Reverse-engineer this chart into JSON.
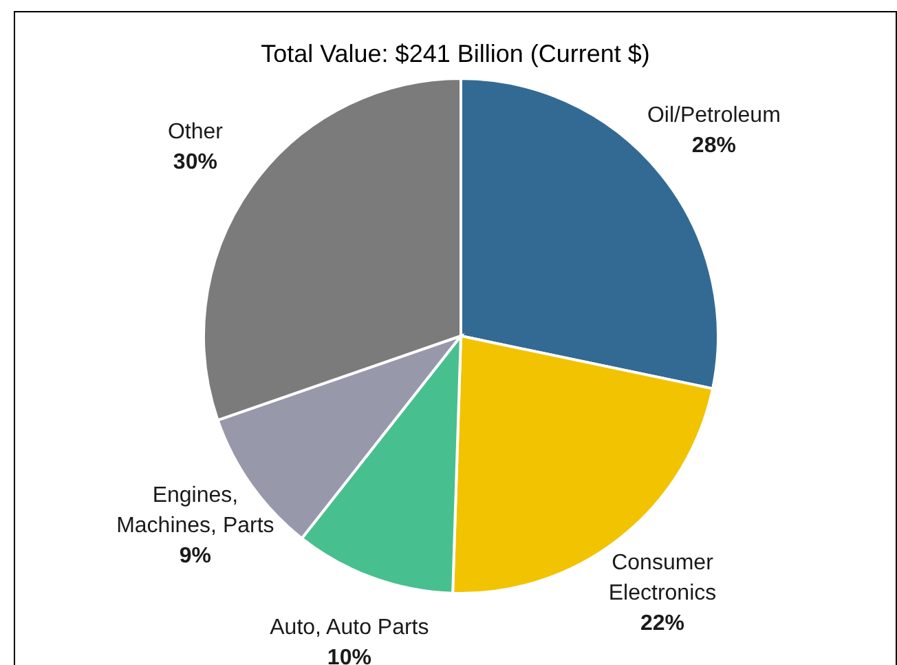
{
  "chart_data": {
    "type": "pie",
    "title": "Total Value: $241 Billion (Current $)",
    "categories": [
      "Oil/Petroleum",
      "Consumer Electronics",
      "Auto, Auto Parts",
      "Engines, Machines, Parts",
      "Other"
    ],
    "values": [
      28,
      22,
      10,
      9,
      30
    ],
    "value_labels": [
      "28%",
      "22%",
      "10%",
      "9%",
      "30%"
    ],
    "colors": [
      "#336a94",
      "#f2c300",
      "#48bf8f",
      "#9898ab",
      "#7b7b7b"
    ],
    "legend": false
  }
}
